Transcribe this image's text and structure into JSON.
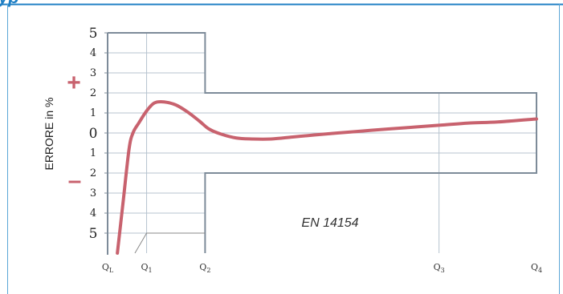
{
  "page": {
    "header_fragment": "yp",
    "accent_color": "#1f7fc4",
    "border_color": "#5aa6d6"
  },
  "chart_data": {
    "type": "line",
    "title": "",
    "annotation": "EN 14154",
    "ylabel": "ERRORE in %",
    "sign_plus": "+",
    "sign_minus": "–",
    "y_ticks": [
      {
        "value": 5,
        "label": "5"
      },
      {
        "value": 4,
        "label": "4"
      },
      {
        "value": 3,
        "label": "3"
      },
      {
        "value": 2,
        "label": "2"
      },
      {
        "value": 1,
        "label": "1"
      },
      {
        "value": 0,
        "label": "0"
      },
      {
        "value": -1,
        "label": "1"
      },
      {
        "value": -2,
        "label": "2"
      },
      {
        "value": -3,
        "label": "3"
      },
      {
        "value": -4,
        "label": "4"
      },
      {
        "value": -5,
        "label": "5"
      }
    ],
    "ylim": [
      -6,
      5
    ],
    "x_ticks": [
      {
        "value": 0,
        "label": "Q",
        "sub": "L"
      },
      {
        "value": 0.2,
        "label": "Q",
        "sub": "1"
      },
      {
        "value": 0.5,
        "label": "Q",
        "sub": "2"
      },
      {
        "value": 1.7,
        "label": "Q",
        "sub": "3"
      },
      {
        "value": 2.2,
        "label": "Q",
        "sub": "4"
      }
    ],
    "xlim": [
      0,
      2.2
    ],
    "error_limits": [
      {
        "from": 0,
        "to": 0.5,
        "upper": 5,
        "lower": -6
      },
      {
        "from": 0.5,
        "to": 2.2,
        "upper": 2,
        "lower": -2
      }
    ],
    "series": [
      {
        "color": "#c8626e",
        "x": [
          0.05,
          0.08,
          0.11,
          0.13,
          0.16,
          0.2,
          0.24,
          0.29,
          0.35,
          0.41,
          0.47,
          0.52,
          0.58,
          0.66,
          0.74,
          0.84,
          0.95,
          1.06,
          1.18,
          1.31,
          1.44,
          1.58,
          1.72,
          1.86,
          2.0,
          2.2
        ],
        "y": [
          -6.0,
          -3.4,
          -0.8,
          0.0,
          0.5,
          1.1,
          1.5,
          1.55,
          1.4,
          1.05,
          0.6,
          0.2,
          -0.05,
          -0.25,
          -0.3,
          -0.3,
          -0.2,
          -0.1,
          0.0,
          0.1,
          0.2,
          0.3,
          0.4,
          0.5,
          0.55,
          0.7
        ]
      }
    ],
    "q1_marker": {
      "x_start": 0.14,
      "x_end": 0.2,
      "y": -5
    }
  }
}
